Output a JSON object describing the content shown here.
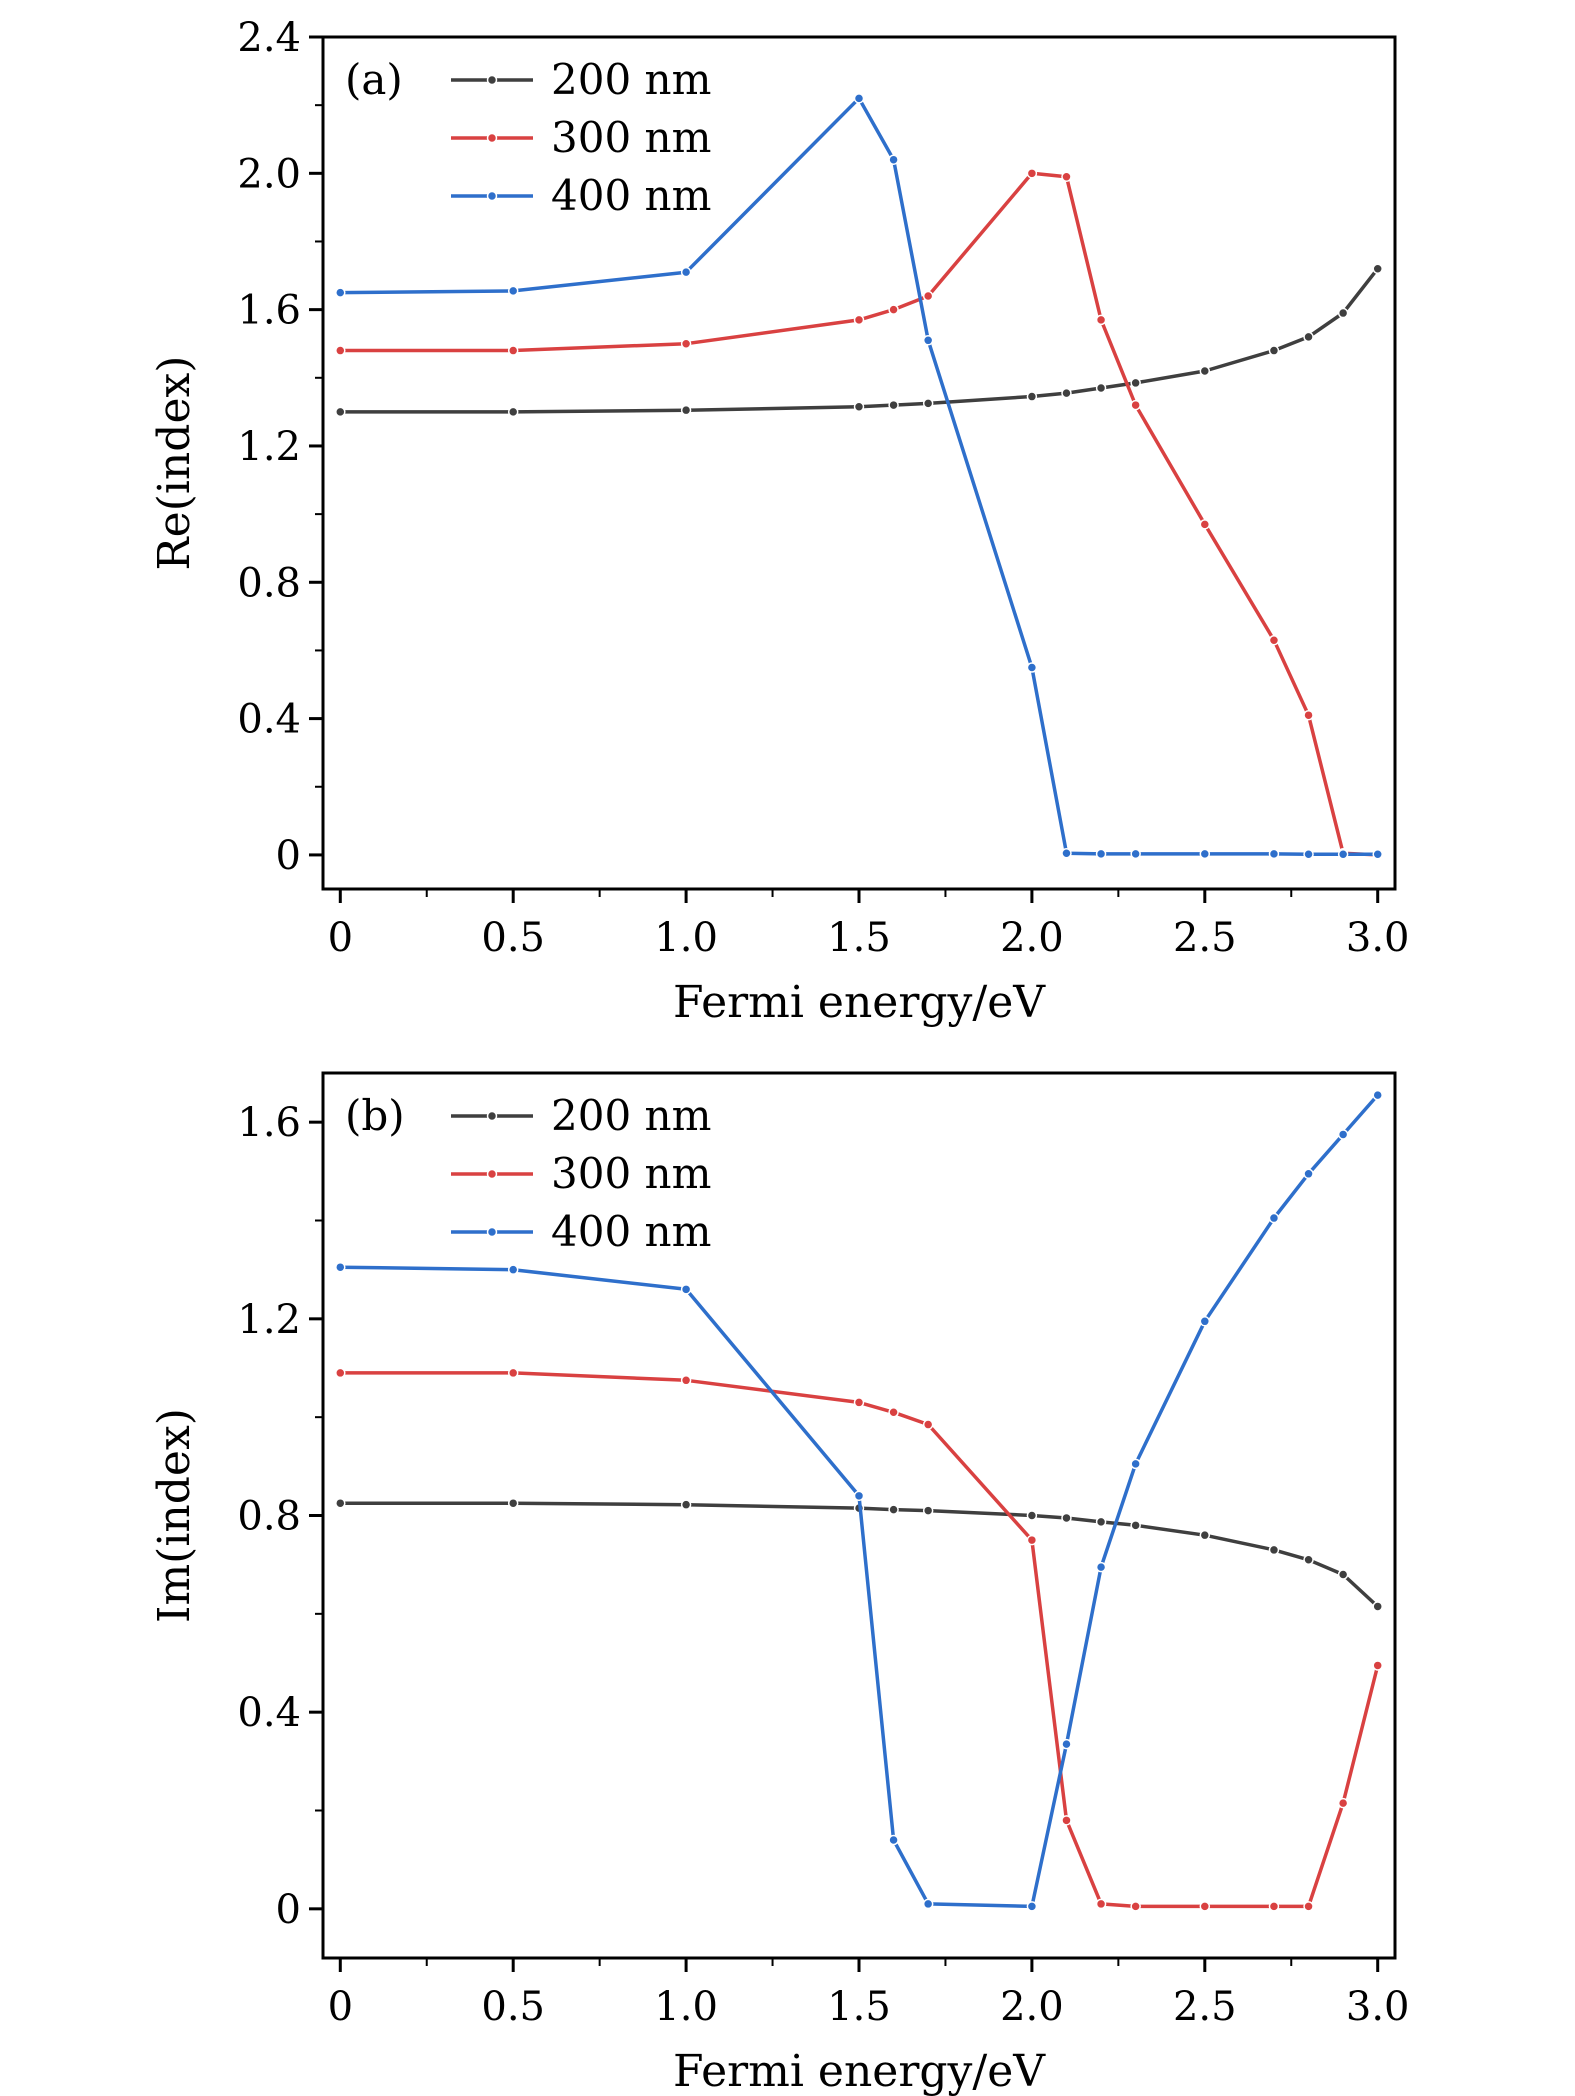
{
  "chart_data": [
    {
      "type": "line",
      "panel_label": "(a)",
      "xlabel": "Fermi energy/eV",
      "ylabel": "Re(index)",
      "xlim": [
        -0.05,
        3.05
      ],
      "ylim": [
        -0.1,
        2.4
      ],
      "xticks": [
        0,
        0.5,
        1.0,
        1.5,
        2.0,
        2.5,
        3.0
      ],
      "xtick_labels": [
        "0",
        "0.5",
        "1.0",
        "1.5",
        "2.0",
        "2.5",
        "3.0"
      ],
      "yticks": [
        0,
        0.4,
        0.8,
        1.2,
        1.6,
        2.0,
        2.4
      ],
      "ytick_labels": [
        "0",
        "0.4",
        "0.8",
        "1.2",
        "1.6",
        "2.0",
        "2.4"
      ],
      "legend_position": "top-left",
      "series": [
        {
          "name": "200 nm",
          "color": "#3f3f3f",
          "x": [
            0,
            0.5,
            1.0,
            1.5,
            1.6,
            1.7,
            2.0,
            2.1,
            2.2,
            2.3,
            2.5,
            2.7,
            2.8,
            2.9,
            3.0
          ],
          "y": [
            1.3,
            1.3,
            1.305,
            1.315,
            1.32,
            1.325,
            1.345,
            1.355,
            1.37,
            1.385,
            1.42,
            1.48,
            1.52,
            1.59,
            1.72
          ]
        },
        {
          "name": "300 nm",
          "color": "#d94141",
          "x": [
            0,
            0.5,
            1.0,
            1.5,
            1.6,
            1.7,
            2.0,
            2.1,
            2.2,
            2.3,
            2.5,
            2.7,
            2.8,
            2.9,
            3.0
          ],
          "y": [
            1.48,
            1.48,
            1.5,
            1.57,
            1.6,
            1.64,
            2.0,
            1.99,
            1.57,
            1.32,
            0.97,
            0.63,
            0.41,
            0.005,
            0.0
          ]
        },
        {
          "name": "400 nm",
          "color": "#2e6fcb",
          "x": [
            0,
            0.5,
            1.0,
            1.5,
            1.6,
            1.7,
            2.0,
            2.1,
            2.2,
            2.3,
            2.5,
            2.7,
            2.8,
            2.9,
            3.0
          ],
          "y": [
            1.65,
            1.655,
            1.71,
            2.22,
            2.04,
            1.51,
            0.55,
            0.005,
            0.003,
            0.003,
            0.003,
            0.003,
            0.002,
            0.002,
            0.002
          ]
        }
      ]
    },
    {
      "type": "line",
      "panel_label": "(b)",
      "xlabel": "Fermi energy/eV",
      "ylabel": "Im(index)",
      "xlim": [
        -0.05,
        3.05
      ],
      "ylim": [
        -0.1,
        1.7
      ],
      "xticks": [
        0,
        0.5,
        1.0,
        1.5,
        2.0,
        2.5,
        3.0
      ],
      "xtick_labels": [
        "0",
        "0.5",
        "1.0",
        "1.5",
        "2.0",
        "2.5",
        "3.0"
      ],
      "yticks": [
        0,
        0.4,
        0.8,
        1.2,
        1.6
      ],
      "ytick_labels": [
        "0",
        "0.4",
        "0.8",
        "1.2",
        "1.6"
      ],
      "legend_position": "top-left",
      "series": [
        {
          "name": "200 nm",
          "color": "#3f3f3f",
          "x": [
            0,
            0.5,
            1.0,
            1.5,
            1.6,
            1.7,
            2.0,
            2.1,
            2.2,
            2.3,
            2.5,
            2.7,
            2.8,
            2.9,
            3.0
          ],
          "y": [
            0.825,
            0.825,
            0.822,
            0.815,
            0.812,
            0.81,
            0.8,
            0.795,
            0.787,
            0.78,
            0.76,
            0.73,
            0.71,
            0.68,
            0.615
          ]
        },
        {
          "name": "300 nm",
          "color": "#d94141",
          "x": [
            0,
            0.5,
            1.0,
            1.5,
            1.6,
            1.7,
            2.0,
            2.1,
            2.2,
            2.3,
            2.5,
            2.7,
            2.8,
            2.9,
            3.0
          ],
          "y": [
            1.09,
            1.09,
            1.075,
            1.03,
            1.01,
            0.985,
            0.75,
            0.18,
            0.01,
            0.005,
            0.005,
            0.005,
            0.005,
            0.215,
            0.495
          ]
        },
        {
          "name": "400 nm",
          "color": "#2e6fcb",
          "x": [
            0,
            0.5,
            1.0,
            1.5,
            1.6,
            1.7,
            2.0,
            2.1,
            2.2,
            2.3,
            2.5,
            2.7,
            2.8,
            2.9,
            3.0
          ],
          "y": [
            1.305,
            1.3,
            1.26,
            0.84,
            0.14,
            0.01,
            0.005,
            0.335,
            0.695,
            0.905,
            1.195,
            1.405,
            1.495,
            1.575,
            1.655
          ]
        }
      ]
    }
  ]
}
